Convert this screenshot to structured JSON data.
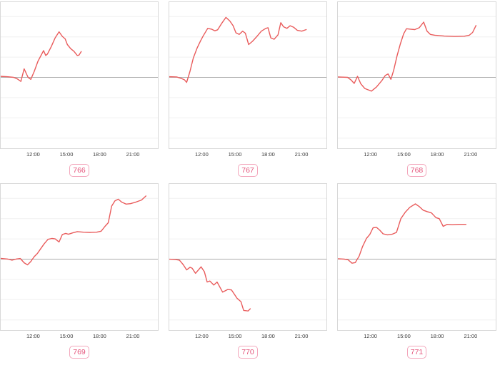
{
  "colors": {
    "line": "#e95c5c",
    "zero_line": "#ababab",
    "gridline": "#f0f0f0",
    "panel_border": "#d8d8d8",
    "tick_label": "#3a3a3a",
    "badge_text": "#e4537a",
    "badge_border": "#f3a6bb"
  },
  "chart_layout": {
    "grid": "2 rows x 3 columns",
    "x_axis_hours_range": [
      9,
      23.5
    ],
    "y_axis": {
      "zero_line": true,
      "tick_labels_visible": false,
      "gridlines_above_zero": 3,
      "gridlines_below_zero": 3,
      "visible_range_units": [
        -3.6,
        3.6
      ]
    },
    "point_format": "[time_hours_24h, value_in_gridline_units_relative_to_zero_line]"
  },
  "chart_data": [
    {
      "type": "line",
      "id": "766",
      "x_tick_labels": [
        "12:00",
        "15:00",
        "18:00",
        "21:00"
      ],
      "line_color": "#e95c5c",
      "points": [
        [
          9.0,
          0.05
        ],
        [
          9.6,
          0.03
        ],
        [
          10.2,
          0.0
        ],
        [
          10.55,
          -0.08
        ],
        [
          10.85,
          -0.2
        ],
        [
          11.15,
          0.42
        ],
        [
          11.5,
          0.0
        ],
        [
          11.75,
          -0.1
        ],
        [
          12.05,
          0.28
        ],
        [
          12.4,
          0.8
        ],
        [
          12.9,
          1.32
        ],
        [
          13.1,
          1.08
        ],
        [
          13.25,
          1.15
        ],
        [
          13.6,
          1.52
        ],
        [
          13.95,
          1.95
        ],
        [
          14.3,
          2.25
        ],
        [
          14.6,
          2.02
        ],
        [
          14.85,
          1.9
        ],
        [
          15.05,
          1.62
        ],
        [
          15.35,
          1.42
        ],
        [
          15.65,
          1.28
        ],
        [
          15.95,
          1.08
        ],
        [
          16.1,
          1.1
        ],
        [
          16.3,
          1.27
        ]
      ]
    },
    {
      "type": "line",
      "id": "767",
      "x_tick_labels": [
        "12:00",
        "15:00",
        "18:00",
        "21:00"
      ],
      "line_color": "#e95c5c",
      "points": [
        [
          9.0,
          0.03
        ],
        [
          9.7,
          0.02
        ],
        [
          10.1,
          -0.05
        ],
        [
          10.4,
          -0.12
        ],
        [
          10.6,
          -0.25
        ],
        [
          10.9,
          0.3
        ],
        [
          11.2,
          0.95
        ],
        [
          11.55,
          1.45
        ],
        [
          11.85,
          1.8
        ],
        [
          12.1,
          2.05
        ],
        [
          12.5,
          2.42
        ],
        [
          12.85,
          2.38
        ],
        [
          13.15,
          2.3
        ],
        [
          13.4,
          2.35
        ],
        [
          13.75,
          2.65
        ],
        [
          14.15,
          2.96
        ],
        [
          14.5,
          2.78
        ],
        [
          14.8,
          2.55
        ],
        [
          15.05,
          2.2
        ],
        [
          15.35,
          2.12
        ],
        [
          15.65,
          2.28
        ],
        [
          15.9,
          2.18
        ],
        [
          16.2,
          1.62
        ],
        [
          16.55,
          1.78
        ],
        [
          16.95,
          2.02
        ],
        [
          17.35,
          2.28
        ],
        [
          17.75,
          2.42
        ],
        [
          17.95,
          2.45
        ],
        [
          18.2,
          1.95
        ],
        [
          18.5,
          1.88
        ],
        [
          18.85,
          2.1
        ],
        [
          19.1,
          2.7
        ],
        [
          19.35,
          2.5
        ],
        [
          19.65,
          2.42
        ],
        [
          19.95,
          2.55
        ],
        [
          20.25,
          2.48
        ],
        [
          20.6,
          2.32
        ],
        [
          21.0,
          2.28
        ],
        [
          21.4,
          2.36
        ]
      ]
    },
    {
      "type": "line",
      "id": "768",
      "x_tick_labels": [
        "12:00",
        "15:00",
        "18:00",
        "21:00"
      ],
      "line_color": "#e95c5c",
      "points": [
        [
          9.0,
          0.02
        ],
        [
          9.9,
          0.0
        ],
        [
          10.2,
          -0.12
        ],
        [
          10.5,
          -0.3
        ],
        [
          10.8,
          0.05
        ],
        [
          11.1,
          -0.32
        ],
        [
          11.45,
          -0.55
        ],
        [
          12.05,
          -0.68
        ],
        [
          12.5,
          -0.48
        ],
        [
          13.0,
          -0.15
        ],
        [
          13.3,
          0.1
        ],
        [
          13.55,
          0.17
        ],
        [
          13.8,
          -0.1
        ],
        [
          14.05,
          0.35
        ],
        [
          14.35,
          1.05
        ],
        [
          14.65,
          1.65
        ],
        [
          14.95,
          2.15
        ],
        [
          15.2,
          2.4
        ],
        [
          15.55,
          2.38
        ],
        [
          15.95,
          2.36
        ],
        [
          16.35,
          2.45
        ],
        [
          16.75,
          2.73
        ],
        [
          17.05,
          2.28
        ],
        [
          17.35,
          2.12
        ],
        [
          17.75,
          2.08
        ],
        [
          18.6,
          2.04
        ],
        [
          19.6,
          2.02
        ],
        [
          20.4,
          2.03
        ],
        [
          20.85,
          2.08
        ],
        [
          21.15,
          2.22
        ],
        [
          21.45,
          2.56
        ]
      ]
    },
    {
      "type": "line",
      "id": "769",
      "x_tick_labels": [
        "12:00",
        "15:00",
        "18:00",
        "21:00"
      ],
      "line_color": "#e95c5c",
      "points": [
        [
          9.0,
          0.04
        ],
        [
          9.7,
          0.0
        ],
        [
          10.05,
          -0.05
        ],
        [
          10.4,
          0.0
        ],
        [
          10.8,
          0.03
        ],
        [
          11.15,
          -0.18
        ],
        [
          11.45,
          -0.28
        ],
        [
          11.75,
          -0.12
        ],
        [
          12.05,
          0.12
        ],
        [
          12.35,
          0.28
        ],
        [
          12.65,
          0.52
        ],
        [
          12.95,
          0.75
        ],
        [
          13.3,
          0.98
        ],
        [
          13.65,
          1.02
        ],
        [
          13.95,
          1.0
        ],
        [
          14.3,
          0.85
        ],
        [
          14.6,
          1.22
        ],
        [
          14.9,
          1.27
        ],
        [
          15.15,
          1.23
        ],
        [
          15.55,
          1.3
        ],
        [
          15.95,
          1.36
        ],
        [
          16.5,
          1.33
        ],
        [
          17.1,
          1.32
        ],
        [
          17.7,
          1.33
        ],
        [
          18.1,
          1.38
        ],
        [
          18.45,
          1.62
        ],
        [
          18.75,
          1.8
        ],
        [
          19.05,
          2.62
        ],
        [
          19.35,
          2.88
        ],
        [
          19.65,
          2.96
        ],
        [
          19.95,
          2.82
        ],
        [
          20.35,
          2.72
        ],
        [
          20.75,
          2.74
        ],
        [
          21.25,
          2.82
        ],
        [
          21.75,
          2.92
        ],
        [
          22.15,
          3.12
        ]
      ]
    },
    {
      "type": "line",
      "id": "770",
      "x_tick_labels": [
        "12:00",
        "15:00",
        "18:00",
        "21:00"
      ],
      "line_color": "#e95c5c",
      "points": [
        [
          9.0,
          0.0
        ],
        [
          9.6,
          -0.02
        ],
        [
          9.95,
          -0.05
        ],
        [
          10.3,
          -0.28
        ],
        [
          10.6,
          -0.53
        ],
        [
          10.9,
          -0.4
        ],
        [
          11.1,
          -0.45
        ],
        [
          11.4,
          -0.7
        ],
        [
          11.9,
          -0.38
        ],
        [
          12.2,
          -0.62
        ],
        [
          12.45,
          -1.13
        ],
        [
          12.7,
          -1.08
        ],
        [
          13.05,
          -1.28
        ],
        [
          13.35,
          -1.13
        ],
        [
          13.85,
          -1.63
        ],
        [
          14.3,
          -1.5
        ],
        [
          14.65,
          -1.52
        ],
        [
          15.15,
          -1.93
        ],
        [
          15.5,
          -2.1
        ],
        [
          15.75,
          -2.53
        ],
        [
          16.15,
          -2.56
        ],
        [
          16.35,
          -2.45
        ]
      ]
    },
    {
      "type": "line",
      "id": "771",
      "x_tick_labels": [
        "12:00",
        "15:00",
        "18:00",
        "21:00"
      ],
      "line_color": "#e95c5c",
      "points": [
        [
          9.0,
          0.02
        ],
        [
          9.6,
          0.0
        ],
        [
          9.95,
          -0.03
        ],
        [
          10.3,
          -0.2
        ],
        [
          10.6,
          -0.17
        ],
        [
          10.95,
          0.15
        ],
        [
          11.25,
          0.62
        ],
        [
          11.6,
          1.02
        ],
        [
          11.9,
          1.22
        ],
        [
          12.2,
          1.55
        ],
        [
          12.5,
          1.57
        ],
        [
          12.8,
          1.43
        ],
        [
          13.1,
          1.25
        ],
        [
          13.5,
          1.2
        ],
        [
          13.9,
          1.23
        ],
        [
          14.3,
          1.32
        ],
        [
          14.7,
          2.0
        ],
        [
          15.1,
          2.32
        ],
        [
          15.5,
          2.56
        ],
        [
          16.0,
          2.73
        ],
        [
          16.35,
          2.6
        ],
        [
          16.7,
          2.42
        ],
        [
          17.05,
          2.35
        ],
        [
          17.45,
          2.28
        ],
        [
          17.85,
          2.05
        ],
        [
          18.15,
          2.0
        ],
        [
          18.5,
          1.62
        ],
        [
          18.85,
          1.72
        ],
        [
          19.3,
          1.7
        ],
        [
          19.9,
          1.72
        ],
        [
          20.55,
          1.72
        ]
      ]
    }
  ]
}
